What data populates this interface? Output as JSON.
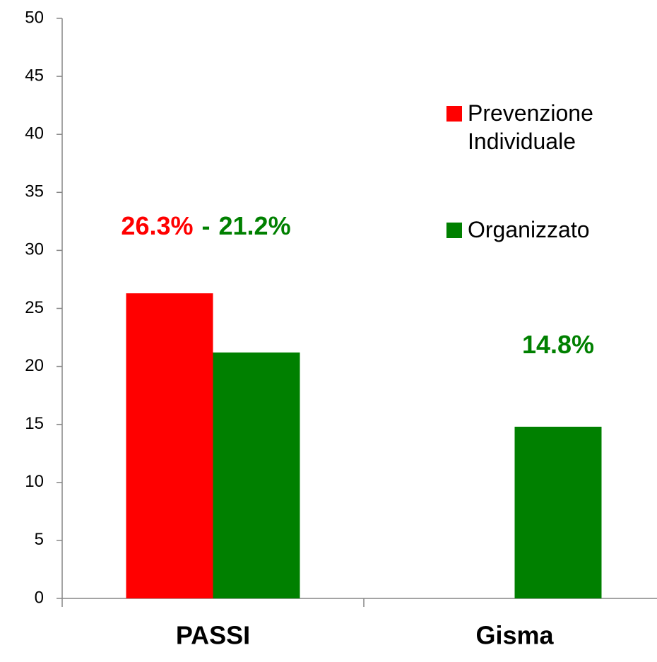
{
  "chart_data": {
    "type": "bar",
    "categories": [
      "PASSI",
      "Gisma"
    ],
    "series": [
      {
        "name": "Prevenzione Individuale",
        "color": "#ff0000",
        "values": [
          26.3,
          null
        ],
        "value_labels": [
          "26.3%",
          null
        ]
      },
      {
        "name": "Organizzato",
        "color": "#008000",
        "values": [
          21.2,
          14.8
        ],
        "value_labels": [
          "21.2%",
          "14.8%"
        ]
      }
    ],
    "label_separator": "-",
    "ylim": [
      0,
      50
    ],
    "yticks": [
      0,
      5,
      10,
      15,
      20,
      25,
      30,
      35,
      40,
      45,
      50
    ],
    "grid": false,
    "legend": "right"
  }
}
